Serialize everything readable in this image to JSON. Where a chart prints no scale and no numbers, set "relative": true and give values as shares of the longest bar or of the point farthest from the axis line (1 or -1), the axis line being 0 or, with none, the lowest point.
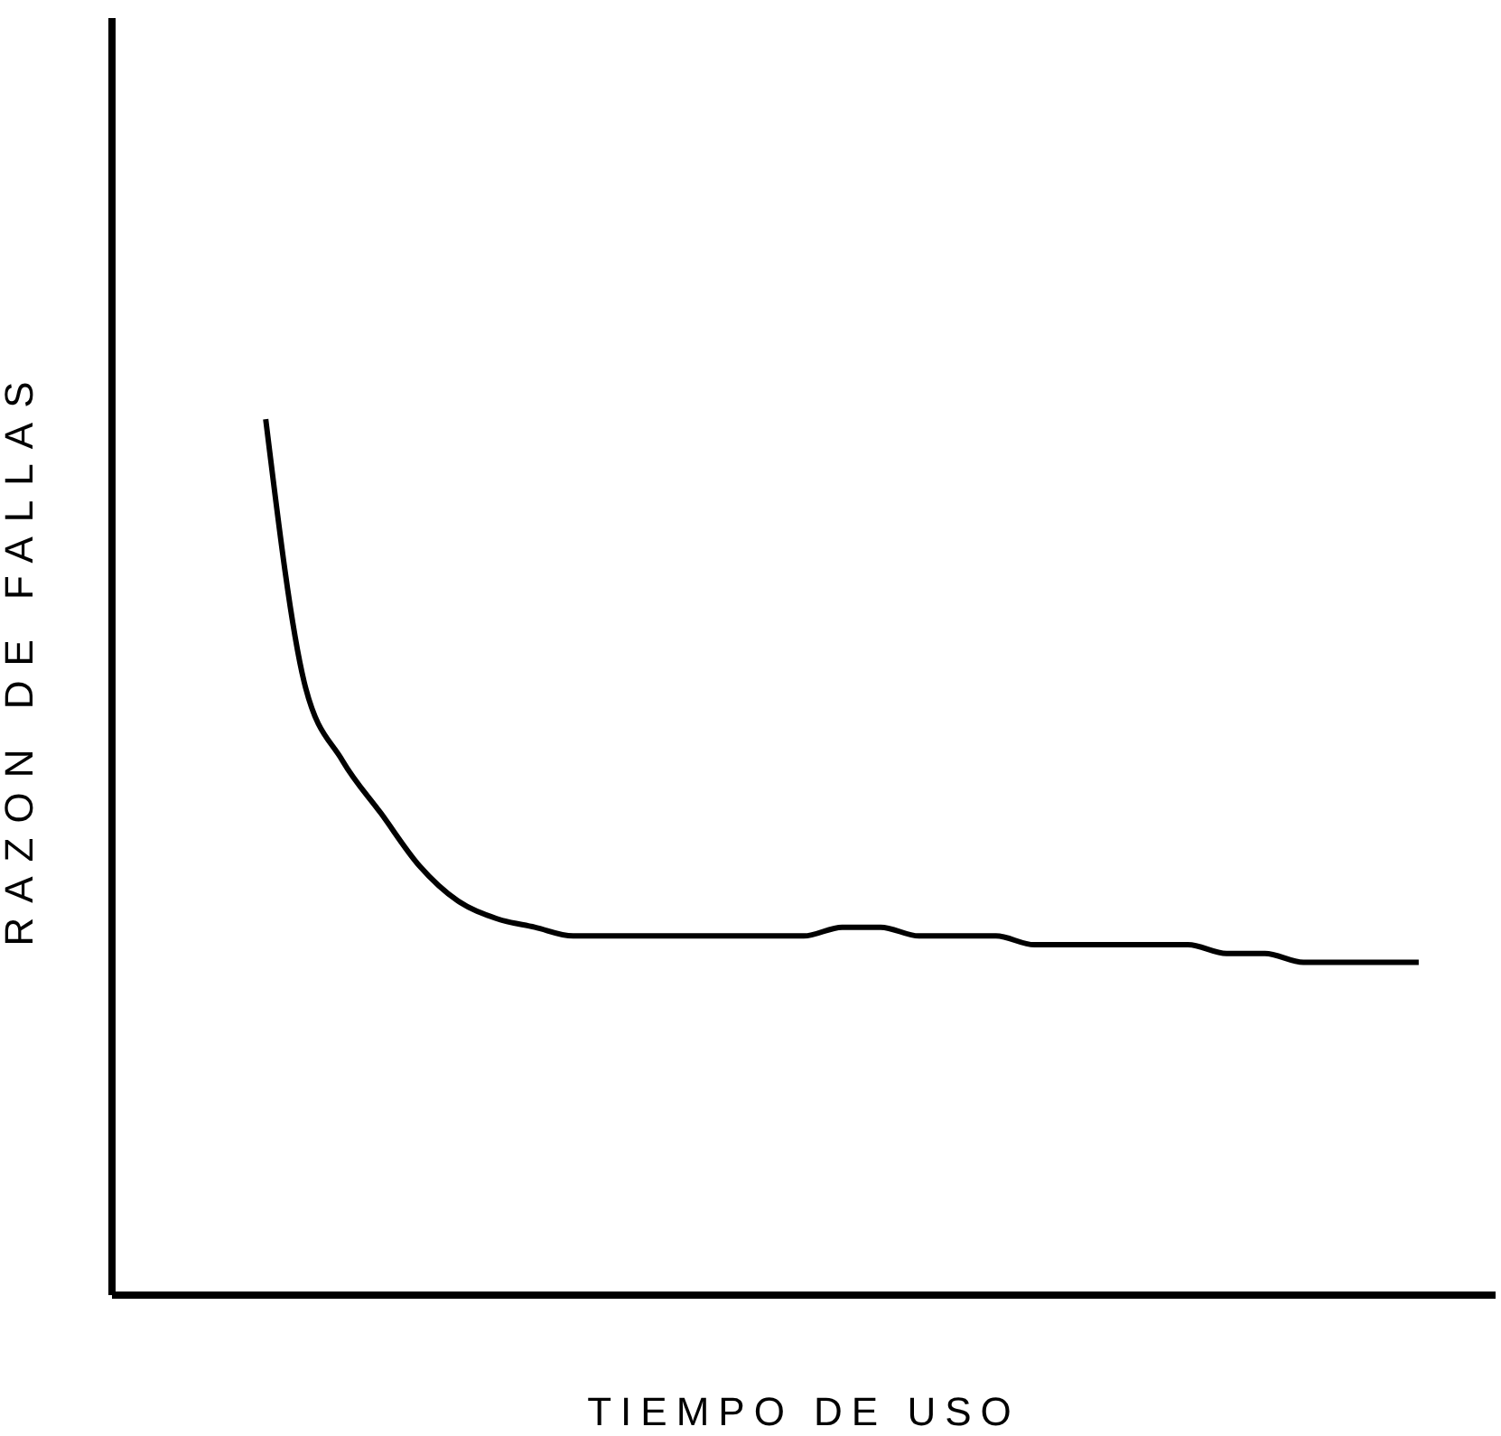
{
  "chart_data": {
    "type": "line",
    "xlabel": "TIEMPO DE USO",
    "ylabel": "RAZON DE FALLAS",
    "relative": true,
    "color": "#000000",
    "categories": [
      null,
      null,
      null,
      null,
      null,
      null,
      null,
      null,
      null,
      null,
      null,
      null,
      null,
      null,
      null,
      null,
      null,
      null,
      null,
      null,
      null,
      null,
      null,
      null,
      null,
      null,
      null,
      null,
      null,
      null,
      null,
      null,
      null,
      null,
      null,
      null,
      null
    ],
    "values": [
      null,
      null,
      null,
      null,
      1,
      0.7,
      0.61,
      0.55,
      0.49,
      0.45,
      0.43,
      0.42,
      0.41,
      0.41,
      0.41,
      0.41,
      0.41,
      0.41,
      0.41,
      0.42,
      0.42,
      0.41,
      0.41,
      0.41,
      0.4,
      0.4,
      0.4,
      0.4,
      0.4,
      0.39,
      0.39,
      0.38,
      0.38,
      0.38,
      0.38,
      null,
      null
    ]
  }
}
